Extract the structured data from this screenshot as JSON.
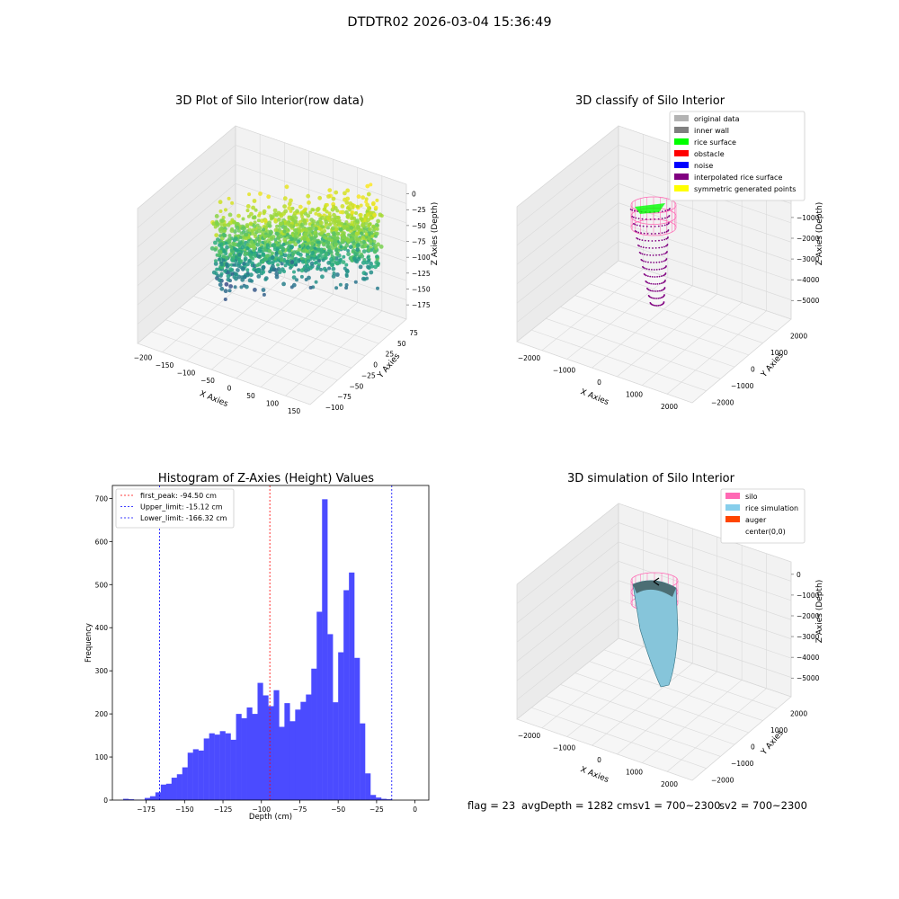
{
  "suptitle": "DTDTR02 2026-03-04 15:36:49",
  "footer": {
    "flag": "flag = 23",
    "avg": "avgDepth = 1282 cmsv1 = 700~2300",
    "sv2": "sv2 = 700~2300"
  },
  "colors": {
    "hist_bar": "#4b4bff",
    "peak_line": "#ff0000",
    "limit_line": "#0000ff",
    "pane_left": "#ebebeb",
    "pane_right": "#f2f2f2",
    "pane_floor": "#f6f6f6",
    "silo": "#ff69b4",
    "rice": "#86c5da",
    "rice_edge": "#2f6f80",
    "interp": "#800080"
  },
  "chart_data": [
    {
      "type": "scatter",
      "projection": "3d",
      "title": "3D Plot of Silo Interior(row data)",
      "xlabel": "X Axies",
      "ylabel": "Y Axies",
      "zlabel": "Z Axies (Depth)",
      "xticks": [
        "−200",
        "−150",
        "−100",
        "−50",
        "0",
        "50",
        "100",
        "150"
      ],
      "yticks": [
        "−100",
        "−75",
        "−50",
        "−25",
        "0",
        "25",
        "50",
        "75"
      ],
      "zticks": [
        "0",
        "−25",
        "−50",
        "−75",
        "−100",
        "−125",
        "−150",
        "−175"
      ],
      "xlim": [
        -225,
        160
      ],
      "ylim": [
        -110,
        90
      ],
      "zlim": [
        -190,
        5
      ],
      "colormap": "viridis (by depth)",
      "grid": true
    },
    {
      "type": "scatter",
      "projection": "3d",
      "title": "3D classify of Silo Interior",
      "xlabel": "X Axies",
      "ylabel": "Y Axies",
      "zlabel": "Z Axies (Depth)",
      "xticks": [
        "−2000",
        "−1000",
        "0",
        "1000",
        "2000"
      ],
      "yticks": [
        "−2000",
        "−1000",
        "0",
        "1000",
        "2000"
      ],
      "zticks": [
        "0",
        "−1000",
        "−2000",
        "−3000",
        "−4000",
        "−5000"
      ],
      "legend": [
        {
          "label": "original data",
          "color": "#b3b3b3"
        },
        {
          "label": "inner wall",
          "color": "#808080"
        },
        {
          "label": "rice surface",
          "color": "#00ff00"
        },
        {
          "label": "obstacle",
          "color": "#ff0000"
        },
        {
          "label": "noise",
          "color": "#0000ff"
        },
        {
          "label": "interpolated rice surface",
          "color": "#800080"
        },
        {
          "label": "symmetric generated points",
          "color": "#ffff00"
        }
      ],
      "legend_position": "upper right",
      "grid": true
    },
    {
      "type": "bar",
      "title": "Histogram of Z-Axies (Height) Values",
      "xlabel": "Depth (cm)",
      "ylabel": "Frequency",
      "xlim": [
        -197,
        9
      ],
      "ylim": [
        0,
        730
      ],
      "xticks": [
        -175,
        -150,
        -125,
        -100,
        -75,
        -50,
        -25,
        0
      ],
      "yticks": [
        0,
        100,
        200,
        300,
        400,
        500,
        600,
        700
      ],
      "bin_start": -190,
      "bin_width": 3.5,
      "values": [
        3,
        2,
        1,
        1,
        5,
        9,
        18,
        36,
        38,
        52,
        60,
        76,
        110,
        118,
        115,
        143,
        155,
        152,
        160,
        155,
        140,
        200,
        190,
        215,
        200,
        272,
        243,
        218,
        255,
        170,
        225,
        183,
        210,
        228,
        245,
        305,
        437,
        698,
        385,
        227,
        343,
        487,
        528,
        330,
        178,
        62,
        12,
        6,
        3,
        2
      ],
      "vlines": [
        {
          "label": "first_peak: -94.50 cm",
          "x": -94.5,
          "color": "#ff0000"
        },
        {
          "label": "Upper_limit: -15.12 cm",
          "x": -15.12,
          "color": "#0000ff"
        },
        {
          "label": "Lower_limit: -166.32 cm",
          "x": -166.32,
          "color": "#0000ff"
        }
      ],
      "legend_position": "upper left",
      "grid": false
    },
    {
      "type": "surface",
      "projection": "3d",
      "title": "3D simulation of Silo Interior",
      "xlabel": "X Axies",
      "ylabel": "Y Axies",
      "zlabel": "Z Axies (Depth)",
      "xticks": [
        "−2000",
        "−1000",
        "0",
        "1000",
        "2000"
      ],
      "yticks": [
        "−2000",
        "−1000",
        "0",
        "1000",
        "2000"
      ],
      "zticks": [
        "0",
        "−1000",
        "−2000",
        "−3000",
        "−4000",
        "−5000"
      ],
      "legend": [
        {
          "label": "silo",
          "color": "#ff69b4"
        },
        {
          "label": "rice simulation",
          "color": "#87ceeb"
        },
        {
          "label": "auger",
          "color": "#ff4500"
        },
        {
          "label": "center(0,0)",
          "color": ""
        }
      ],
      "legend_position": "upper right",
      "grid": true
    }
  ]
}
